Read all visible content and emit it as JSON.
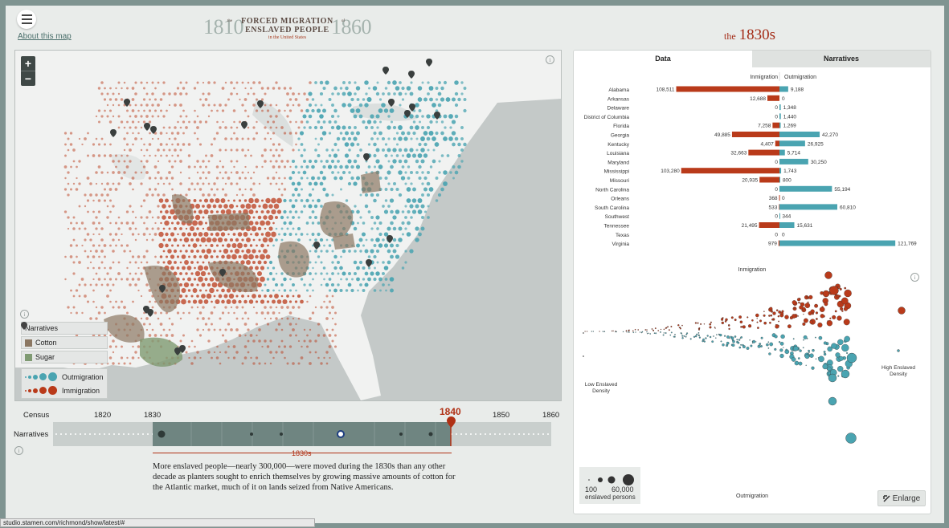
{
  "header": {
    "menu_icon": "hamburger-icon",
    "about_link": "About this map",
    "logo": {
      "year_start": "1810",
      "year_end": "1860",
      "the": "the",
      "title_line1": "FORCED MIGRATION",
      "of": "of",
      "title_line2": "ENSLAVED PEOPLE",
      "subtitle": "in the United States"
    },
    "decade_title_small": "the",
    "decade_title_large": "1830s"
  },
  "map": {
    "zoom_in": "+",
    "zoom_out": "−",
    "info_icon": "info-icon",
    "legend": {
      "narratives": "Narratives",
      "cotton": "Cotton",
      "sugar": "Sugar",
      "outmigration": "Outmigration",
      "immigration": "Immigration"
    },
    "colors": {
      "immigration": "#b93a1a",
      "outmigration": "#4aa4b1",
      "cotton": "#8b7762",
      "sugar": "#7f9a72",
      "water": "#c4c9c8",
      "land": "#f1f2f1"
    }
  },
  "timeline": {
    "census_label": "Census",
    "narratives_label": "Narratives",
    "census_years": [
      "1820",
      "1830",
      "1850",
      "1860"
    ],
    "highlight_year": "1840",
    "decade_label": "1830s"
  },
  "narrative_text": "More enslaved people—nearly 300,000—were moved during the 1830s than any other decade as planters sought to enrich themselves by growing massive amounts of cotton for the Atlantic market, much of it on lands seized from Native Americans.",
  "status_url": "studio.stamen.com/richmond/show/latest/#",
  "panel": {
    "tabs": [
      "Data",
      "Narratives"
    ],
    "active_tab": "Data",
    "bar_header_left": "Inmigration",
    "bar_header_right": "Outmigration",
    "scatter_top_label": "Inmigration",
    "scatter_bottom_label": "Outmigration",
    "scatter_left_label": [
      "Low Enslaved",
      "Density"
    ],
    "scatter_right_label": [
      "High Enslaved",
      "Density"
    ],
    "size_key": {
      "min": "100",
      "max": "60,000",
      "unit": "enslaved persons"
    },
    "enlarge_label": "Enlarge",
    "enlarge_icon": "arrow-expand-icon"
  },
  "chart_data": {
    "type": "bar",
    "orientation": "horizontal-diverging",
    "series": [
      {
        "name": "Inmigration",
        "color": "#b93a1a",
        "values": [
          108511,
          12688,
          0,
          0,
          7258,
          49885,
          4407,
          32663,
          0,
          103280,
          20935,
          0,
          368,
          533,
          0,
          21495,
          0,
          979
        ]
      },
      {
        "name": "Outmigration",
        "color": "#4aa4b1",
        "values": [
          9188,
          0,
          1348,
          1440,
          1269,
          42270,
          26925,
          5714,
          30250,
          1743,
          800,
          55194,
          0,
          60810,
          344,
          15631,
          0,
          121769
        ]
      }
    ],
    "categories": [
      "Alabama",
      "Arkansas",
      "Delaware",
      "District of Columbia",
      "Florida",
      "Georgia",
      "Kentucky",
      "Louisiana",
      "Maryland",
      "Mississippi",
      "Missouri",
      "North Carolina",
      "Orleans",
      "South Carolina",
      "Southwest",
      "Tennessee",
      "Texas",
      "Virginia"
    ],
    "labels_left": [
      "108,511",
      "12,688",
      "0",
      "0",
      "7,258",
      "49,885",
      "4,407",
      "32,663",
      "0",
      "103,280",
      "20,935",
      "0",
      "368",
      "533",
      "0",
      "21,495",
      "0",
      "979"
    ],
    "labels_right": [
      "9,188",
      "0",
      "1,348",
      "1,440",
      "1,269",
      "42,270",
      "26,925",
      "5,714",
      "30,250",
      "1,743",
      "800",
      "55,194",
      "0",
      "60,810",
      "344",
      "15,631",
      "0",
      "121,769"
    ]
  }
}
